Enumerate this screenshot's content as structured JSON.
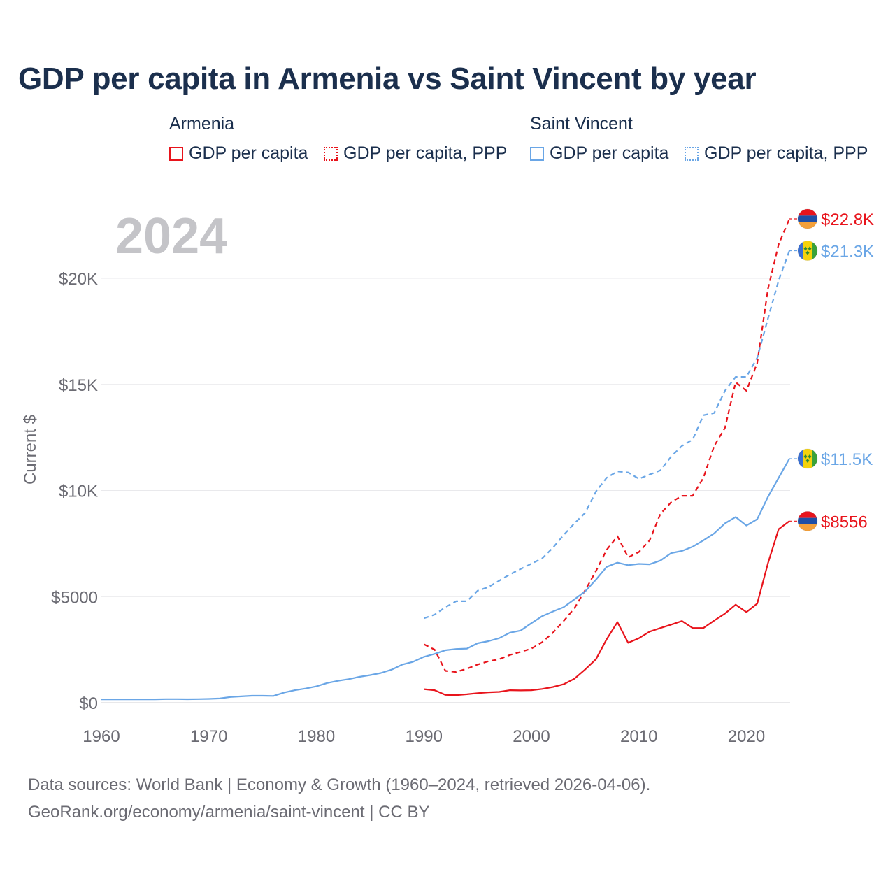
{
  "title": "GDP per capita in Armenia vs Saint Vincent by year",
  "legend": {
    "groups": [
      {
        "name": "Armenia",
        "color": "#e8141c",
        "items": [
          {
            "label": "GDP per capita",
            "style": "solid"
          },
          {
            "label": "GDP per capita, PPP",
            "style": "dotted"
          }
        ]
      },
      {
        "name": "Saint Vincent",
        "color": "#6aa6e6",
        "items": [
          {
            "label": "GDP per capita",
            "style": "solid"
          },
          {
            "label": "GDP per capita, PPP",
            "style": "dotted"
          }
        ]
      }
    ]
  },
  "footer": {
    "line1": "Data sources: World Bank | Economy & Growth (1960–2024, retrieved 2026-04-06).",
    "line2": "GeoRank.org/economy/armenia/saint-vincent | CC BY"
  },
  "chart_data": {
    "type": "line",
    "title": "GDP per capita in Armenia vs Saint Vincent by year",
    "year_label": "2024",
    "xlabel": "",
    "ylabel": "Current $",
    "xlim": [
      1960,
      2024
    ],
    "ylim": [
      0,
      23000
    ],
    "x_ticks": [
      1960,
      1970,
      1980,
      1990,
      2000,
      2010,
      2020
    ],
    "x_tick_labels": [
      "1960",
      "1970",
      "1980",
      "1990",
      "2000",
      "2010",
      "2020"
    ],
    "y_ticks": [
      0,
      5000,
      10000,
      15000,
      20000
    ],
    "y_tick_labels": [
      "$0",
      "$5000",
      "$10K",
      "$15K",
      "$20K"
    ],
    "grid": true,
    "series": [
      {
        "name": "Armenia GDP per capita",
        "country": "Armenia",
        "color": "#e8141c",
        "dash": "solid",
        "end_label": "$8556",
        "flag": "armenia",
        "x": [
          1990,
          1991,
          1992,
          1993,
          1994,
          1995,
          1996,
          1997,
          1998,
          1999,
          2000,
          2001,
          2002,
          2003,
          2004,
          2005,
          2006,
          2007,
          2008,
          2009,
          2010,
          2011,
          2012,
          2013,
          2014,
          2015,
          2016,
          2017,
          2018,
          2019,
          2020,
          2021,
          2022,
          2023,
          2024
        ],
        "values": [
          640,
          590,
          370,
          360,
          400,
          450,
          490,
          510,
          590,
          580,
          590,
          650,
          740,
          870,
          1130,
          1570,
          2050,
          2990,
          3800,
          2820,
          3040,
          3350,
          3520,
          3680,
          3850,
          3520,
          3520,
          3870,
          4200,
          4620,
          4270,
          4670,
          6570,
          8180,
          8556
        ]
      },
      {
        "name": "Armenia GDP per capita, PPP",
        "country": "Armenia",
        "color": "#e8141c",
        "dash": "dashed",
        "end_label": "$22.8K",
        "flag": "armenia",
        "x": [
          1990,
          1991,
          1992,
          1993,
          1994,
          1995,
          1996,
          1997,
          1998,
          1999,
          2000,
          2001,
          2002,
          2003,
          2004,
          2005,
          2006,
          2007,
          2008,
          2009,
          2010,
          2011,
          2012,
          2013,
          2014,
          2015,
          2016,
          2017,
          2018,
          2019,
          2020,
          2021,
          2022,
          2023,
          2024
        ],
        "values": [
          2750,
          2500,
          1500,
          1450,
          1600,
          1800,
          1950,
          2050,
          2250,
          2400,
          2550,
          2850,
          3300,
          3850,
          4450,
          5300,
          6200,
          7200,
          7850,
          6850,
          7100,
          7650,
          8900,
          9450,
          9750,
          9750,
          10600,
          12100,
          12950,
          15100,
          14700,
          16000,
          19500,
          21600,
          22800
        ]
      },
      {
        "name": "Saint Vincent GDP per capita",
        "country": "Saint Vincent",
        "color": "#6aa6e6",
        "dash": "solid",
        "end_label": "$11.5K",
        "flag": "saint-vincent",
        "x": [
          1960,
          1961,
          1962,
          1963,
          1964,
          1965,
          1966,
          1967,
          1968,
          1969,
          1970,
          1971,
          1972,
          1973,
          1974,
          1975,
          1976,
          1977,
          1978,
          1979,
          1980,
          1981,
          1982,
          1983,
          1984,
          1985,
          1986,
          1987,
          1988,
          1989,
          1990,
          1991,
          1992,
          1993,
          1994,
          1995,
          1996,
          1997,
          1998,
          1999,
          2000,
          2001,
          2002,
          2003,
          2004,
          2005,
          2006,
          2007,
          2008,
          2009,
          2010,
          2011,
          2012,
          2013,
          2014,
          2015,
          2016,
          2017,
          2018,
          2019,
          2020,
          2021,
          2022,
          2023,
          2024
        ],
        "values": [
          160,
          160,
          160,
          160,
          160,
          160,
          170,
          170,
          165,
          170,
          180,
          200,
          270,
          300,
          330,
          330,
          320,
          480,
          590,
          670,
          770,
          930,
          1030,
          1110,
          1220,
          1300,
          1400,
          1560,
          1800,
          1930,
          2160,
          2300,
          2470,
          2530,
          2550,
          2800,
          2900,
          3040,
          3300,
          3400,
          3750,
          4080,
          4300,
          4500,
          4870,
          5250,
          5800,
          6400,
          6600,
          6480,
          6540,
          6520,
          6700,
          7050,
          7150,
          7350,
          7650,
          7980,
          8450,
          8750,
          8350,
          8650,
          9700,
          10600,
          11500
        ]
      },
      {
        "name": "Saint Vincent GDP per capita, PPP",
        "country": "Saint Vincent",
        "color": "#6aa6e6",
        "dash": "dashed",
        "end_label": "$21.3K",
        "flag": "saint-vincent",
        "x": [
          1990,
          1991,
          1992,
          1993,
          1994,
          1995,
          1996,
          1997,
          1998,
          1999,
          2000,
          2001,
          2002,
          2003,
          2004,
          2005,
          2006,
          2007,
          2008,
          2009,
          2010,
          2011,
          2012,
          2013,
          2014,
          2015,
          2016,
          2017,
          2018,
          2019,
          2020,
          2021,
          2022,
          2023,
          2024
        ],
        "values": [
          3980,
          4150,
          4500,
          4780,
          4780,
          5280,
          5450,
          5750,
          6050,
          6300,
          6550,
          6800,
          7300,
          7900,
          8450,
          8950,
          9950,
          10600,
          10900,
          10850,
          10550,
          10750,
          10950,
          11600,
          12100,
          12400,
          13550,
          13650,
          14700,
          15350,
          15350,
          16250,
          18100,
          19900,
          21300
        ]
      }
    ]
  }
}
